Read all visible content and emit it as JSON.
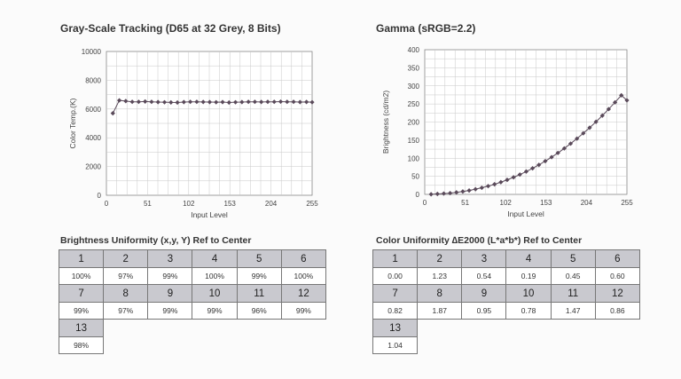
{
  "chart_data": [
    {
      "type": "line",
      "title": "Gray-Scale Tracking (D65 at 32 Grey, 8 Bits)",
      "xlabel": "Input Level",
      "ylabel": "Color Temp.(K)",
      "xlim": [
        0,
        255
      ],
      "ylim": [
        0,
        10000
      ],
      "xticks": [
        "0",
        "51",
        "102",
        "153",
        "204",
        "255"
      ],
      "yticks": [
        "0",
        "2000",
        "4000",
        "6000",
        "8000",
        "10000"
      ],
      "grid": true,
      "series_color": "#5a4a5a",
      "series": [
        {
          "x": [
            8,
            16,
            24,
            32,
            40,
            48,
            56,
            64,
            72,
            80,
            88,
            96,
            104,
            112,
            120,
            128,
            136,
            144,
            152,
            160,
            168,
            176,
            184,
            192,
            200,
            208,
            216,
            224,
            232,
            240,
            248,
            255
          ],
          "values": [
            5700,
            6600,
            6550,
            6500,
            6500,
            6520,
            6500,
            6480,
            6470,
            6460,
            6450,
            6480,
            6500,
            6500,
            6490,
            6480,
            6470,
            6480,
            6450,
            6470,
            6480,
            6500,
            6500,
            6490,
            6500,
            6500,
            6510,
            6500,
            6500,
            6480,
            6490,
            6470
          ]
        }
      ]
    },
    {
      "type": "line",
      "title": "Gamma (sRGB=2.2)",
      "xlabel": "Input Level",
      "ylabel": "Brightness (cd/m2)",
      "xlim": [
        0,
        255
      ],
      "ylim": [
        0,
        400
      ],
      "xticks": [
        "0",
        "51",
        "102",
        "153",
        "204",
        "255"
      ],
      "yticks": [
        "0",
        "50",
        "100",
        "150",
        "200",
        "250",
        "300",
        "350",
        "400"
      ],
      "grid": true,
      "series_color": "#5a4a5a",
      "series": [
        {
          "x": [
            8,
            16,
            24,
            32,
            40,
            48,
            56,
            64,
            72,
            80,
            88,
            96,
            104,
            112,
            120,
            128,
            136,
            144,
            152,
            160,
            168,
            176,
            184,
            192,
            200,
            208,
            216,
            224,
            232,
            240,
            248,
            255
          ],
          "values": [
            0.3,
            1.2,
            2.3,
            3.5,
            5.5,
            7.9,
            10.8,
            14.3,
            18.3,
            22.9,
            28.0,
            33.8,
            40.2,
            47.2,
            54.8,
            63.1,
            72.0,
            81.6,
            91.9,
            102.9,
            114.6,
            127.1,
            140.3,
            154.2,
            168.9,
            184.4,
            200.7,
            217.8,
            235.7,
            254.4,
            273.9,
            260.0
          ]
        }
      ]
    }
  ],
  "brightness_uniformity": {
    "title": "Brightness Uniformity (x,y, Y) Ref to Center",
    "rows": [
      {
        "headers": [
          "1",
          "2",
          "3",
          "4",
          "5",
          "6"
        ],
        "values": [
          "100%",
          "97%",
          "99%",
          "100%",
          "99%",
          "100%"
        ]
      },
      {
        "headers": [
          "7",
          "8",
          "9",
          "10",
          "11",
          "12"
        ],
        "values": [
          "99%",
          "97%",
          "99%",
          "99%",
          "96%",
          "99%"
        ]
      },
      {
        "headers": [
          "13"
        ],
        "values": [
          "98%"
        ]
      }
    ]
  },
  "color_uniformity": {
    "title": "Color Uniformity ∆E2000 (L*a*b*) Ref to Center",
    "rows": [
      {
        "headers": [
          "1",
          "2",
          "3",
          "4",
          "5",
          "6"
        ],
        "values": [
          "0.00",
          "1.23",
          "0.54",
          "0.19",
          "0.45",
          "0.60"
        ]
      },
      {
        "headers": [
          "7",
          "8",
          "9",
          "10",
          "11",
          "12"
        ],
        "values": [
          "0.82",
          "1.87",
          "0.95",
          "0.78",
          "1.47",
          "0.86"
        ]
      },
      {
        "headers": [
          "13"
        ],
        "values": [
          "1.04"
        ]
      }
    ]
  }
}
